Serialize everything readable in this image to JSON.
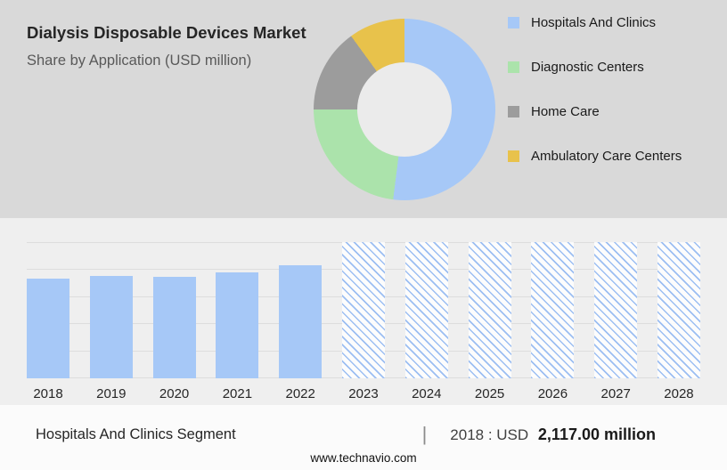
{
  "header": {
    "title": "Dialysis Disposable Devices Market",
    "subtitle": "Share by Application (USD million)"
  },
  "legend": [
    {
      "label": "Hospitals And Clinics",
      "color": "#a6c8f7"
    },
    {
      "label": "Diagnostic Centers",
      "color": "#abe3ab"
    },
    {
      "label": "Home Care",
      "color": "#9c9c9c"
    },
    {
      "label": "Ambulatory Care Centers",
      "color": "#e8c24b"
    }
  ],
  "chart_data": [
    {
      "type": "pie",
      "donut": true,
      "title": "Share by Application (USD million)",
      "legend_position": "right",
      "segments": [
        {
          "label": "Hospitals And Clinics",
          "value": 52,
          "color": "#a6c8f7"
        },
        {
          "label": "Diagnostic Centers",
          "value": 23,
          "color": "#abe3ab"
        },
        {
          "label": "Home Care",
          "value": 15,
          "color": "#9c9c9c"
        },
        {
          "label": "Ambulatory Care Centers",
          "value": 10,
          "color": "#e8c24b"
        }
      ]
    },
    {
      "type": "bar",
      "categories": [
        "2018",
        "2019",
        "2020",
        "2021",
        "2022",
        "2023",
        "2024",
        "2025",
        "2026",
        "2027",
        "2028"
      ],
      "values": [
        2117,
        2180,
        2160,
        2255,
        2400,
        null,
        null,
        null,
        null,
        null,
        null
      ],
      "forecast_from_index": 5,
      "forecast_style": "hatched-full-height",
      "bar_color": "#a6c8f7",
      "ylim": [
        0,
        2900
      ],
      "grid": true,
      "title": "",
      "xlabel": "",
      "ylabel": ""
    }
  ],
  "footer": {
    "segment_label": "Hospitals And Clinics Segment",
    "separator": "|",
    "value_prefix": "2018 : USD",
    "value_amount": "2,117.00 million",
    "website": "www.technavio.com"
  }
}
